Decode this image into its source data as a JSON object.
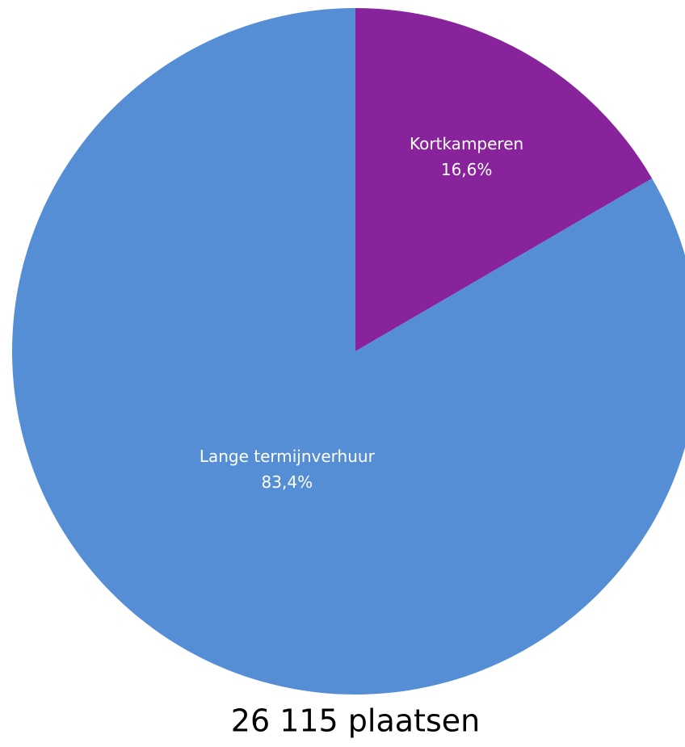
{
  "chart_data": {
    "type": "pie",
    "categories": [
      "Kortkamperen",
      "Lange termijnverhuur"
    ],
    "values": [
      16.6,
      83.4
    ],
    "value_labels": [
      "16,6%",
      "83,4%"
    ],
    "colors": [
      "#88239c",
      "#558ed5"
    ],
    "caption": "26 115 plaatsen"
  }
}
